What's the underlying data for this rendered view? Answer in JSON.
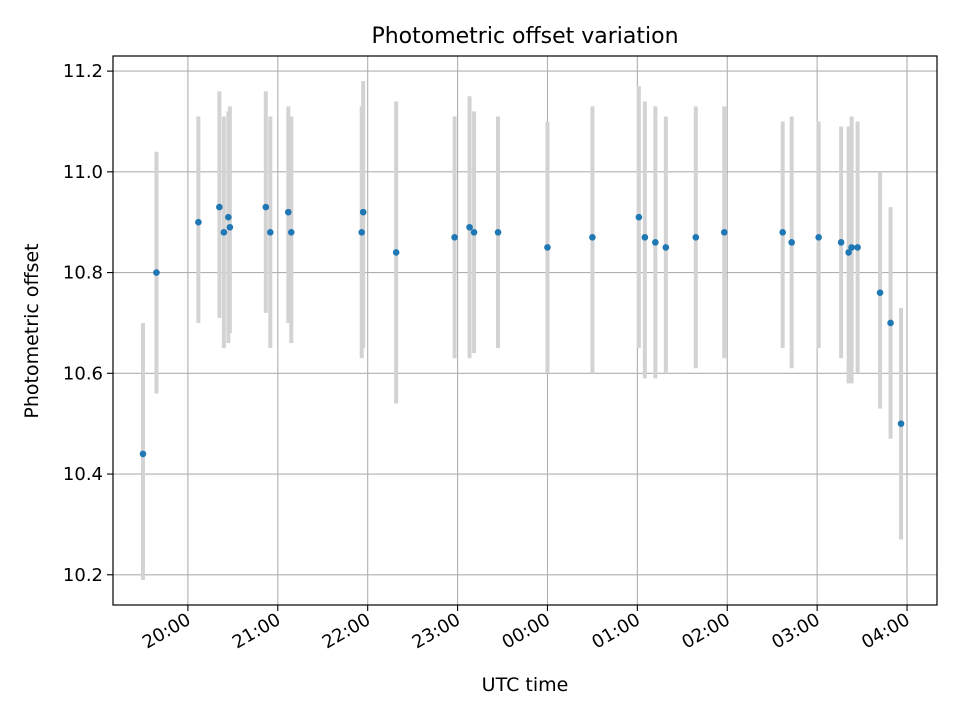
{
  "chart_data": {
    "type": "scatter",
    "title": "Photometric offset variation",
    "xlabel": "UTC time",
    "ylabel": "Photometric offset",
    "x_unit": "hours (UTC, wrapping past midnight)",
    "xlim": [
      "19:10",
      "04:20"
    ],
    "ylim": [
      10.14,
      11.23
    ],
    "x_ticks": [
      "20:00",
      "21:00",
      "22:00",
      "23:00",
      "00:00",
      "01:00",
      "02:00",
      "03:00",
      "04:00"
    ],
    "y_ticks": [
      "10.2",
      "10.4",
      "10.6",
      "10.8",
      "11.0",
      "11.2"
    ],
    "grid": true,
    "point_color": "#1f77b4",
    "errorbar_color": "#d3d3d3",
    "points": [
      {
        "t": "19:30",
        "y": 10.44,
        "lo": 10.19,
        "hi": 10.7
      },
      {
        "t": "19:39",
        "y": 10.8,
        "lo": 10.56,
        "hi": 11.04
      },
      {
        "t": "20:07",
        "y": 10.9,
        "lo": 10.7,
        "hi": 11.11
      },
      {
        "t": "20:21",
        "y": 10.93,
        "lo": 10.71,
        "hi": 11.16
      },
      {
        "t": "20:24",
        "y": 10.88,
        "lo": 10.65,
        "hi": 11.11
      },
      {
        "t": "20:27",
        "y": 10.91,
        "lo": 10.66,
        "hi": 11.12
      },
      {
        "t": "20:28",
        "y": 10.89,
        "lo": 10.68,
        "hi": 11.13
      },
      {
        "t": "20:52",
        "y": 10.93,
        "lo": 10.72,
        "hi": 11.16
      },
      {
        "t": "20:55",
        "y": 10.88,
        "lo": 10.65,
        "hi": 11.11
      },
      {
        "t": "21:07",
        "y": 10.92,
        "lo": 10.7,
        "hi": 11.13
      },
      {
        "t": "21:09",
        "y": 10.88,
        "lo": 10.66,
        "hi": 11.11
      },
      {
        "t": "21:56",
        "y": 10.88,
        "lo": 10.63,
        "hi": 11.13
      },
      {
        "t": "21:57",
        "y": 10.92,
        "lo": 10.65,
        "hi": 11.18
      },
      {
        "t": "22:19",
        "y": 10.84,
        "lo": 10.54,
        "hi": 11.14
      },
      {
        "t": "22:58",
        "y": 10.87,
        "lo": 10.63,
        "hi": 11.11
      },
      {
        "t": "23:08",
        "y": 10.89,
        "lo": 10.63,
        "hi": 11.15
      },
      {
        "t": "23:11",
        "y": 10.88,
        "lo": 10.64,
        "hi": 11.12
      },
      {
        "t": "23:27",
        "y": 10.88,
        "lo": 10.65,
        "hi": 11.11
      },
      {
        "t": "00:00",
        "y": 10.85,
        "lo": 10.6,
        "hi": 11.1
      },
      {
        "t": "00:30",
        "y": 10.87,
        "lo": 10.6,
        "hi": 11.13
      },
      {
        "t": "01:01",
        "y": 10.91,
        "lo": 10.65,
        "hi": 11.17
      },
      {
        "t": "01:05",
        "y": 10.87,
        "lo": 10.59,
        "hi": 11.14
      },
      {
        "t": "01:12",
        "y": 10.86,
        "lo": 10.59,
        "hi": 11.13
      },
      {
        "t": "01:19",
        "y": 10.85,
        "lo": 10.6,
        "hi": 11.11
      },
      {
        "t": "01:39",
        "y": 10.87,
        "lo": 10.61,
        "hi": 11.13
      },
      {
        "t": "01:58",
        "y": 10.88,
        "lo": 10.63,
        "hi": 11.13
      },
      {
        "t": "02:37",
        "y": 10.88,
        "lo": 10.65,
        "hi": 11.1
      },
      {
        "t": "02:43",
        "y": 10.86,
        "lo": 10.61,
        "hi": 11.11
      },
      {
        "t": "03:01",
        "y": 10.87,
        "lo": 10.65,
        "hi": 11.1
      },
      {
        "t": "03:16",
        "y": 10.86,
        "lo": 10.63,
        "hi": 11.09
      },
      {
        "t": "03:21",
        "y": 10.84,
        "lo": 10.58,
        "hi": 11.09
      },
      {
        "t": "03:23",
        "y": 10.85,
        "lo": 10.58,
        "hi": 11.11
      },
      {
        "t": "03:27",
        "y": 10.85,
        "lo": 10.6,
        "hi": 11.1
      },
      {
        "t": "03:42",
        "y": 10.76,
        "lo": 10.53,
        "hi": 11.0
      },
      {
        "t": "03:49",
        "y": 10.7,
        "lo": 10.47,
        "hi": 10.93
      },
      {
        "t": "03:56",
        "y": 10.5,
        "lo": 10.27,
        "hi": 10.73
      }
    ]
  }
}
